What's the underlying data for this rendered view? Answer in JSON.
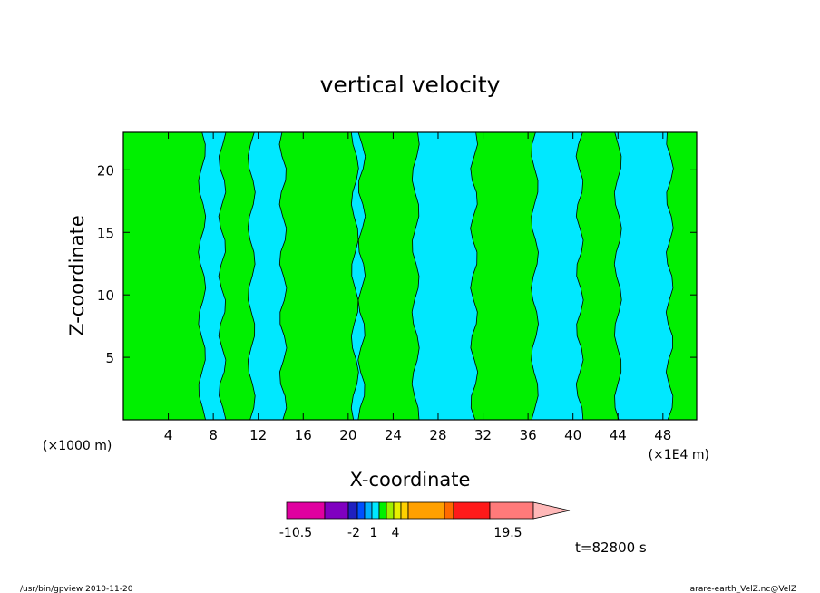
{
  "chart_data": {
    "type": "heatmap",
    "title": "vertical velocity",
    "xlabel": "X-coordinate",
    "ylabel": "Z-coordinate",
    "x_units_left": "(×1000 m)",
    "x_units_right": "(×1E4 m)",
    "xlim": [
      0,
      51
    ],
    "ylim": [
      0,
      23
    ],
    "x_ticks": [
      4,
      8,
      12,
      16,
      20,
      24,
      28,
      32,
      36,
      40,
      44,
      48
    ],
    "y_ticks": [
      5,
      10,
      15,
      20
    ],
    "grid": false,
    "field_colors": {
      "negative": "#00e8ff",
      "positive": "#00f000"
    },
    "time_label": "t=82800 s",
    "colorbar": {
      "colors": [
        "#e000a0",
        "#8000c0",
        "#2020c0",
        "#0050ff",
        "#00b0ff",
        "#00e8ff",
        "#00f000",
        "#a0f000",
        "#e8f000",
        "#ffd000",
        "#ffa000",
        "#ff6a00",
        "#ff1a1a",
        "#ff7a7a",
        "#ffb8b8"
      ],
      "tick_labels": [
        "-10.5",
        "-2",
        "1",
        "4",
        "19.5"
      ]
    },
    "positive_regions_x": [
      [
        0,
        7.0
      ],
      [
        8.8,
        11.4
      ],
      [
        14.2,
        20.6
      ],
      [
        21.2,
        26.0
      ],
      [
        31.2,
        36.6
      ],
      [
        40.6,
        44.0
      ],
      [
        48.6,
        51.0
      ]
    ]
  },
  "footer": {
    "left": "/usr/bin/gpview   2010-11-20",
    "right": "arare-earth_VelZ.nc@VelZ"
  }
}
